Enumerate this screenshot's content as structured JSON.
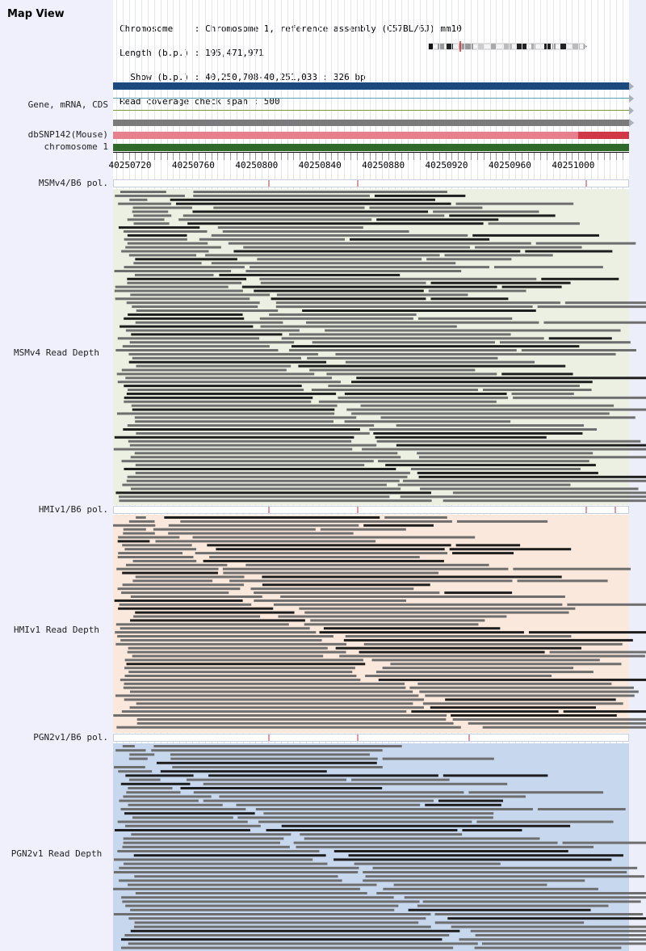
{
  "map": {
    "title": "Map View"
  },
  "info": {
    "chromosome_line": "Chromosome    : Chromosome 1, reference assembly (C57BL/6J) mm10",
    "length_line": "Length (b.p.) : 195,471,971",
    "show_line": "  Show (b.p.) : 40,250,708-40,251,033 : 326 bp",
    "coverage_line": "Read coverage check span : 500"
  },
  "tracks": {
    "gene_label": "Gene, mRNA, CDS",
    "snp_label": "dbSNP142(Mouse)",
    "chromosome_label": "chromosome 1"
  },
  "axis": {
    "ticks": [
      "40250720",
      "40250760",
      "40250800",
      "40250840",
      "40250880",
      "40250920",
      "40250960",
      "40251000"
    ]
  },
  "strains": [
    {
      "pol_label": "MSMv4/B6 pol.",
      "depth_label": "MSMv4 Read Depth",
      "background": "#ecf0e2"
    },
    {
      "pol_label": "HMIv1/B6 pol.",
      "depth_label": "HMIv1 Read Depth",
      "background": "#fbe8dc"
    },
    {
      "pol_label": "PGN2v1/B6 pol.",
      "depth_label": "PGN2v1 Read Depth",
      "background": "#c7d8ee"
    }
  ],
  "colors": {
    "gene_bar": "#1d4a7e",
    "mrna_line": "#5aa0b0",
    "cds_line": "#7a9a3a",
    "gray_bar": "#7a7a7a",
    "snp_bar": "#e6808c",
    "snp_dark": "#d03848",
    "chromosome_bar": "#2f6a2a",
    "read_gray": "#6e6e6e",
    "read_dark": "#1e1e1e",
    "pol_mark": "#c03030"
  }
}
